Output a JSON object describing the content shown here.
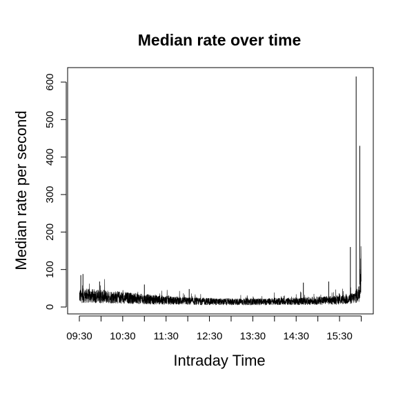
{
  "chart_data": {
    "type": "line",
    "title": "Median rate over time",
    "xlabel": "Intraday Time",
    "ylabel": "Median rate per second",
    "x_tick_labels": [
      "09:30",
      "10:30",
      "11:30",
      "12:30",
      "13:30",
      "14:30",
      "15:30"
    ],
    "x_tick_values_minutes": [
      570,
      630,
      690,
      750,
      810,
      870,
      930
    ],
    "xlim_minutes": [
      570,
      960
    ],
    "y_ticks": [
      0,
      100,
      200,
      300,
      400,
      500,
      600
    ],
    "ylim": [
      0,
      600
    ],
    "grid": false,
    "legend": "none",
    "series": [
      {
        "color": "#000000",
        "x_minutes": [
          570,
          580,
          590,
          600,
          610,
          620,
          630,
          640,
          650,
          660,
          670,
          680,
          690,
          700,
          710,
          720,
          730,
          740,
          750,
          760,
          770,
          780,
          790,
          800,
          810,
          820,
          830,
          840,
          850,
          860,
          870,
          880,
          890,
          900,
          910,
          920,
          930,
          935,
          940,
          945,
          950,
          952,
          955,
          957,
          958,
          959,
          960
        ],
        "baseline": [
          30,
          30,
          29,
          28,
          27,
          26,
          25,
          24,
          22,
          21,
          20,
          19,
          18,
          17,
          17,
          16,
          15,
          15,
          15,
          14,
          14,
          14,
          14,
          14,
          14,
          14,
          14,
          15,
          15,
          15,
          15,
          16,
          16,
          17,
          18,
          18,
          19,
          20,
          20,
          22,
          24,
          28,
          32,
          40,
          60,
          80,
          110
        ]
      }
    ],
    "spikes": [
      {
        "x_minutes": 572,
        "y": 85
      },
      {
        "x_minutes": 575,
        "y": 88
      },
      {
        "x_minutes": 598,
        "y": 68
      },
      {
        "x_minutes": 660,
        "y": 60
      },
      {
        "x_minutes": 722,
        "y": 48
      },
      {
        "x_minutes": 880,
        "y": 65
      },
      {
        "x_minutes": 915,
        "y": 68
      },
      {
        "x_minutes": 945,
        "y": 160
      },
      {
        "x_minutes": 953,
        "y": 615
      },
      {
        "x_minutes": 958,
        "y": 430
      }
    ]
  }
}
